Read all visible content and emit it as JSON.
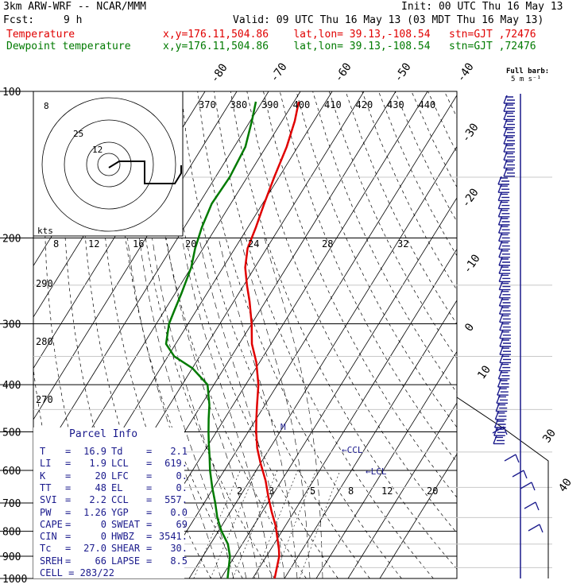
{
  "header": {
    "model": "3km ARW-WRF -- NCAR/MMM",
    "init": "Init: 00 UTC Thu 16 May 13",
    "fcst_label": "Fcst:",
    "fcst_value": "9 h",
    "valid": "Valid: 09 UTC Thu 16 May 13 (03 MDT Thu 16 May 13)",
    "temp_label": "Temperature",
    "temp_info": "x,y=176.11,504.86    lat,lon= 39.13,-108.54   stn=GJT ,72476",
    "dew_label": "Dewpoint temperature",
    "dew_info": "x,y=176.11,504.86    lat,lon= 39.13,-108.54   stn=GJT ,72476"
  },
  "barb_legend": {
    "line1": "Full barb:",
    "line2": "5 m s⁻¹"
  },
  "colors": {
    "temperature": "#e00000",
    "dewpoint": "#007a00",
    "parcel_text": "#1a1a8c",
    "grid": "#000000",
    "barbs": "#1a1a8c"
  },
  "hodograph": {
    "units_label": "kts",
    "ring_labels": [
      "8",
      "25",
      "12"
    ],
    "hodo_points": [
      [
        137,
        211
      ],
      [
        150,
        203
      ],
      [
        182,
        203
      ],
      [
        182,
        231
      ],
      [
        220,
        231
      ],
      [
        228,
        218
      ],
      [
        228,
        208
      ]
    ]
  },
  "parcel": {
    "title": "Parcel Info",
    "rows": [
      {
        "l1": "T",
        "v1": "16.9",
        "l2": "Td",
        "v2": "2.1"
      },
      {
        "l1": "LI",
        "v1": "1.9",
        "l2": "LCL",
        "v2": "619."
      },
      {
        "l1": "K",
        "v1": "20",
        "l2": "LFC",
        "v2": "0."
      },
      {
        "l1": "TT",
        "v1": "48",
        "l2": "EL",
        "v2": "0."
      },
      {
        "l1": "SVI",
        "v1": "2.2",
        "l2": "CCL",
        "v2": "557."
      },
      {
        "l1": "PW",
        "v1": "1.26",
        "l2": "YGP",
        "v2": "0.0"
      },
      {
        "l1": "CAPE",
        "v1": "0",
        "l2": "SWEAT",
        "v2": "69"
      },
      {
        "l1": "CIN",
        "v1": "0",
        "l2": "HWBZ",
        "v2": "3541."
      },
      {
        "l1": "Tc",
        "v1": "27.0",
        "l2": "SHEAR",
        "v2": "30."
      },
      {
        "l1": "SREH",
        "v1": "66",
        "l2": "LAPSE",
        "v2": "8.5"
      },
      {
        "single": "CELL = 283/22"
      }
    ]
  },
  "chart_data": {
    "type": "line",
    "diagram": "skew-T log-p",
    "y_scale": "log",
    "pressure_ticks": [
      100,
      200,
      300,
      400,
      500,
      600,
      700,
      800,
      900,
      1000
    ],
    "isotherm_labels": [
      -80,
      -70,
      -60,
      -50,
      -40,
      -30,
      -20,
      -10,
      0,
      10,
      30,
      40
    ],
    "theta_labels": [
      370,
      380,
      390,
      400,
      410,
      420,
      430,
      440
    ],
    "mixing_ratio_labels_upper": [
      8,
      12,
      16,
      20,
      24,
      28,
      32
    ],
    "mixing_ratio_labels_lower": [
      2,
      3,
      5,
      8,
      12,
      20
    ],
    "dry_adiabat_labels": [
      290,
      280,
      270
    ],
    "annotations": [
      "CCL",
      "LCL",
      "M"
    ],
    "series": [
      {
        "name": "Temperature",
        "color": "#e00000",
        "points": [
          [
            1000,
            16.9
          ],
          [
            900,
            14.0
          ],
          [
            870,
            12.5
          ],
          [
            820,
            9.5
          ],
          [
            780,
            7.0
          ],
          [
            730,
            3.0
          ],
          [
            680,
            -1.0
          ],
          [
            630,
            -5.0
          ],
          [
            580,
            -10.0
          ],
          [
            540,
            -14.0
          ],
          [
            500,
            -17.5
          ],
          [
            470,
            -20.0
          ],
          [
            440,
            -22.5
          ],
          [
            400,
            -26.0
          ],
          [
            360,
            -31.0
          ],
          [
            330,
            -36.0
          ],
          [
            300,
            -40.0
          ],
          [
            270,
            -45.0
          ],
          [
            250,
            -49.0
          ],
          [
            230,
            -53.0
          ],
          [
            210,
            -56.0
          ],
          [
            190,
            -57.5
          ],
          [
            170,
            -59.5
          ],
          [
            150,
            -61.5
          ],
          [
            130,
            -63.5
          ],
          [
            115,
            -66.0
          ],
          [
            105,
            -68.5
          ]
        ]
      },
      {
        "name": "Dewpoint temperature",
        "color": "#007a00",
        "points": [
          [
            1000,
            2.1
          ],
          [
            900,
            -1.5
          ],
          [
            850,
            -4.5
          ],
          [
            800,
            -9.0
          ],
          [
            750,
            -13.0
          ],
          [
            700,
            -16.5
          ],
          [
            650,
            -20.5
          ],
          [
            600,
            -24.5
          ],
          [
            560,
            -27.5
          ],
          [
            530,
            -30.0
          ],
          [
            500,
            -32.5
          ],
          [
            470,
            -35.0
          ],
          [
            440,
            -37.5
          ],
          [
            400,
            -42.0
          ],
          [
            370,
            -50.0
          ],
          [
            350,
            -58.0
          ],
          [
            330,
            -63.0
          ],
          [
            300,
            -66.0
          ],
          [
            280,
            -67.0
          ],
          [
            260,
            -68.0
          ],
          [
            230,
            -70.0
          ],
          [
            210,
            -72.5
          ],
          [
            190,
            -74.5
          ],
          [
            170,
            -76.0
          ],
          [
            150,
            -75.5
          ],
          [
            130,
            -76.5
          ],
          [
            115,
            -79.5
          ],
          [
            105,
            -82.0
          ]
        ]
      }
    ],
    "wind_barbs": {
      "full_barb_ms": 5,
      "levels": 44
    }
  }
}
